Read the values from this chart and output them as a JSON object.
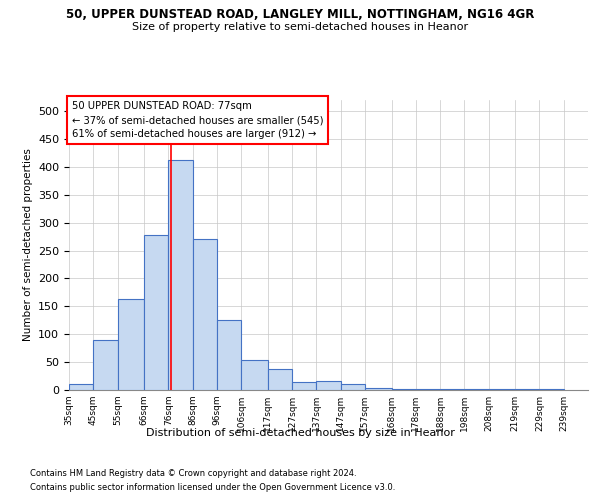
{
  "title1": "50, UPPER DUNSTEAD ROAD, LANGLEY MILL, NOTTINGHAM, NG16 4GR",
  "title2": "Size of property relative to semi-detached houses in Heanor",
  "xlabel": "Distribution of semi-detached houses by size in Heanor",
  "ylabel": "Number of semi-detached properties",
  "footnote1": "Contains HM Land Registry data © Crown copyright and database right 2024.",
  "footnote2": "Contains public sector information licensed under the Open Government Licence v3.0.",
  "annotation_title": "50 UPPER DUNSTEAD ROAD: 77sqm",
  "annotation_line1": "← 37% of semi-detached houses are smaller (545)",
  "annotation_line2": "61% of semi-detached houses are larger (912) →",
  "property_sqm": 77,
  "bar_left_edges": [
    35,
    45,
    55,
    66,
    76,
    86,
    96,
    106,
    117,
    127,
    137,
    147,
    157,
    168,
    178,
    188,
    198,
    208,
    219,
    229
  ],
  "bar_widths": [
    10,
    10,
    11,
    10,
    10,
    10,
    10,
    11,
    10,
    10,
    10,
    10,
    11,
    10,
    10,
    10,
    10,
    11,
    10,
    10
  ],
  "bar_heights": [
    10,
    90,
    163,
    278,
    413,
    270,
    125,
    54,
    37,
    15,
    16,
    10,
    4,
    2,
    2,
    2,
    2,
    1,
    1,
    1
  ],
  "tick_labels": [
    "35sqm",
    "45sqm",
    "55sqm",
    "66sqm",
    "76sqm",
    "86sqm",
    "96sqm",
    "106sqm",
    "117sqm",
    "127sqm",
    "137sqm",
    "147sqm",
    "157sqm",
    "168sqm",
    "178sqm",
    "188sqm",
    "198sqm",
    "208sqm",
    "219sqm",
    "229sqm",
    "239sqm"
  ],
  "bar_color": "#c6d9f1",
  "bar_edge_color": "#4472c4",
  "grid_color": "#c8c8c8",
  "vline_color": "#ff0000",
  "ylim": [
    0,
    520
  ],
  "yticks": [
    0,
    50,
    100,
    150,
    200,
    250,
    300,
    350,
    400,
    450,
    500
  ],
  "bg_color": "#ffffff",
  "fig_width": 6.0,
  "fig_height": 5.0,
  "dpi": 100
}
